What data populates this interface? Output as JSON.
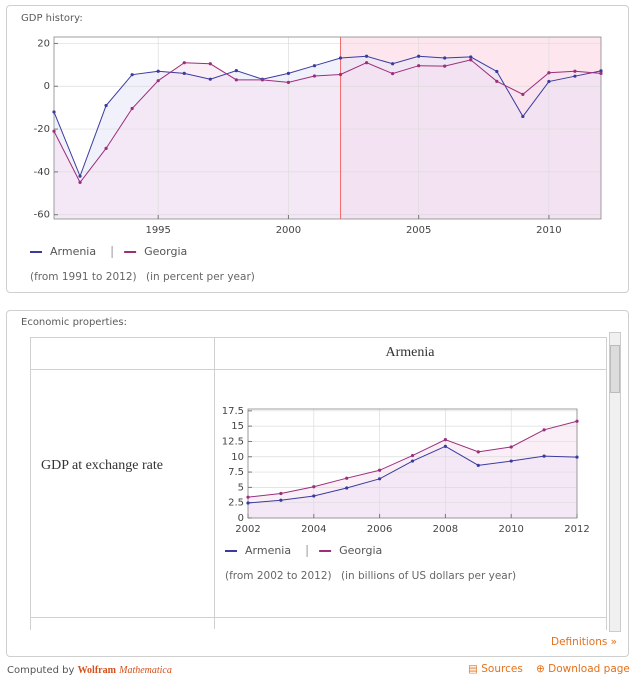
{
  "pods": [
    {
      "title": "GDP history:"
    },
    {
      "title": "Economic properties:",
      "column_header": "Armenia",
      "row_label": "GDP at exchange rate"
    }
  ],
  "chart_data": [
    {
      "type": "line",
      "x": [
        1991,
        1992,
        1993,
        1994,
        1995,
        1996,
        1997,
        1998,
        1999,
        2000,
        2001,
        2002,
        2003,
        2004,
        2005,
        2006,
        2007,
        2008,
        2009,
        2010,
        2011,
        2012
      ],
      "series": [
        {
          "name": "Armenia",
          "color": "#3b3b9e",
          "fill": "#e6e6fa",
          "values": [
            -12,
            -42,
            -9,
            5.4,
            7,
            6,
            3.3,
            7.3,
            3.3,
            6,
            9.6,
            13.2,
            14,
            10.5,
            14,
            13.2,
            13.7,
            6.9,
            -14.1,
            2.2,
            4.7,
            7.2
          ]
        },
        {
          "name": "Georgia",
          "color": "#9b2f7a",
          "fill": "#f6e0f0",
          "values": [
            -21,
            -44.9,
            -29,
            -10.4,
            2.6,
            11,
            10.5,
            3,
            3,
            1.8,
            4.8,
            5.5,
            11,
            5.9,
            9.6,
            9.4,
            12.3,
            2.3,
            -3.8,
            6.3,
            7,
            6
          ]
        }
      ],
      "xlim": [
        1991,
        2012
      ],
      "ylim": [
        -62,
        23
      ],
      "xticks": [
        1995,
        2000,
        2005,
        2010
      ],
      "yticks": [
        -60,
        -40,
        -20,
        0,
        20
      ],
      "grid": true,
      "shaded_from": 2002,
      "shade_color": "#fde6ee",
      "shade_line_color": "#f26a6a",
      "notes": [
        "(from 1991 to 2012)",
        "(in percent per year)"
      ]
    },
    {
      "type": "line",
      "x": [
        2002,
        2003,
        2004,
        2005,
        2006,
        2007,
        2008,
        2009,
        2010,
        2011,
        2012
      ],
      "series": [
        {
          "name": "Armenia",
          "color": "#3b3b9e",
          "fill": "#e6e6fa",
          "values": [
            2.45,
            2.9,
            3.6,
            4.9,
            6.4,
            9.3,
            11.7,
            8.6,
            9.3,
            10.1,
            9.95
          ]
        },
        {
          "name": "Georgia",
          "color": "#9b2f7a",
          "fill": "#f6e0f0",
          "values": [
            3.4,
            4,
            5.1,
            6.5,
            7.8,
            10.2,
            12.8,
            10.8,
            11.6,
            14.4,
            15.8
          ]
        }
      ],
      "xlim": [
        2002,
        2012
      ],
      "ylim": [
        0,
        17.8
      ],
      "xticks": [
        2002,
        2004,
        2006,
        2008,
        2010,
        2012
      ],
      "yticks": [
        0,
        2.5,
        5,
        7.5,
        10,
        12.5,
        15,
        17.5
      ],
      "grid": true,
      "notes": [
        "(from 2002 to 2012)",
        "(in billions of US dollars per year)"
      ]
    }
  ],
  "links": {
    "definitions": "Definitions »",
    "sources": "Sources",
    "download": "Download page"
  },
  "footer": {
    "computed_by": "Computed by",
    "brand": "Wolfram",
    "product": "Mathematica"
  }
}
